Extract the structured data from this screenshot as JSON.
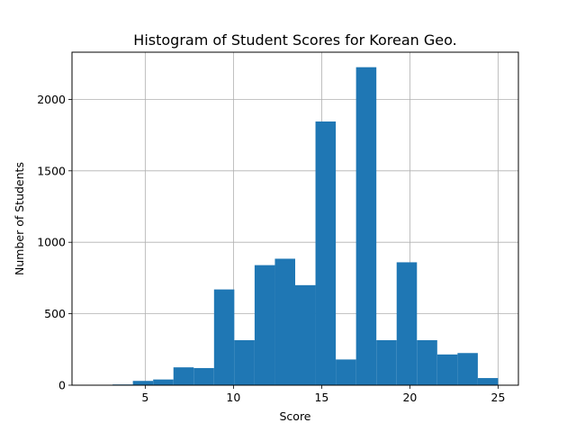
{
  "chart_data": {
    "type": "bar",
    "title": "Histogram of Student Scores for Korean Geo.",
    "xlabel": "Score",
    "ylabel": "Number of Students",
    "xlim": [
      0.85,
      26.15
    ],
    "ylim": [
      0,
      2330
    ],
    "x_ticks": [
      5,
      10,
      15,
      20,
      25
    ],
    "y_ticks": [
      0,
      500,
      1000,
      1500,
      2000
    ],
    "grid": true,
    "bar_color": "#1f77b4",
    "bins": [
      {
        "x0": 2.0,
        "x1": 3.15,
        "value": 3
      },
      {
        "x0": 3.15,
        "x1": 4.3,
        "value": 5
      },
      {
        "x0": 4.3,
        "x1": 5.45,
        "value": 30
      },
      {
        "x0": 5.45,
        "x1": 6.6,
        "value": 40
      },
      {
        "x0": 6.6,
        "x1": 7.75,
        "value": 125
      },
      {
        "x0": 7.75,
        "x1": 8.9,
        "value": 120
      },
      {
        "x0": 8.9,
        "x1": 10.05,
        "value": 670
      },
      {
        "x0": 10.05,
        "x1": 11.2,
        "value": 315
      },
      {
        "x0": 11.2,
        "x1": 12.35,
        "value": 840
      },
      {
        "x0": 12.35,
        "x1": 13.5,
        "value": 885
      },
      {
        "x0": 13.5,
        "x1": 14.65,
        "value": 700
      },
      {
        "x0": 14.65,
        "x1": 15.8,
        "value": 1845
      },
      {
        "x0": 15.8,
        "x1": 16.95,
        "value": 180
      },
      {
        "x0": 16.95,
        "x1": 18.1,
        "value": 2225
      },
      {
        "x0": 18.1,
        "x1": 19.25,
        "value": 315
      },
      {
        "x0": 19.25,
        "x1": 20.4,
        "value": 860
      },
      {
        "x0": 20.4,
        "x1": 21.55,
        "value": 315
      },
      {
        "x0": 21.55,
        "x1": 22.7,
        "value": 215
      },
      {
        "x0": 22.7,
        "x1": 23.85,
        "value": 225
      },
      {
        "x0": 23.85,
        "x1": 25.0,
        "value": 50
      }
    ]
  }
}
